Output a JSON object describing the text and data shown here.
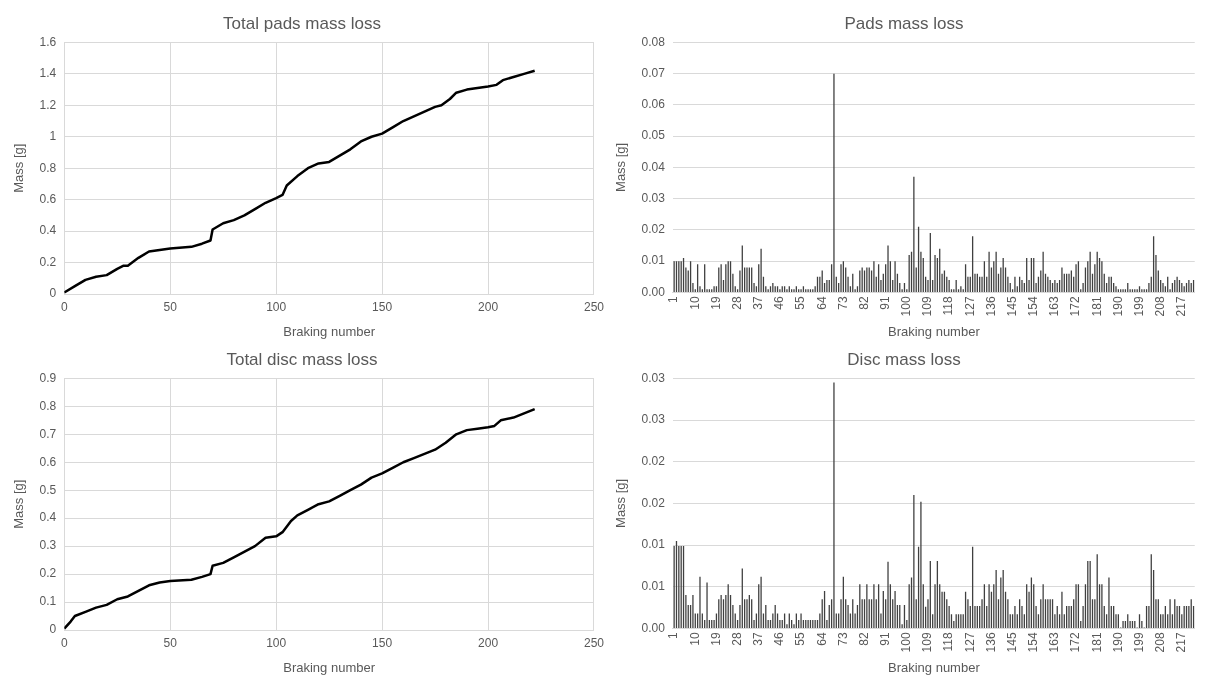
{
  "chart_data": [
    {
      "type": "line",
      "title": "Total pads mass loss",
      "xlabel": "Braking number",
      "ylabel": "Mass [g]",
      "color": "#000000",
      "grid": true,
      "x": [
        0,
        5,
        10,
        15,
        20,
        25,
        28,
        30,
        35,
        40,
        45,
        50,
        60,
        65,
        69,
        70,
        75,
        80,
        85,
        90,
        95,
        100,
        103,
        105,
        110,
        115,
        120,
        125,
        130,
        135,
        140,
        145,
        150,
        155,
        160,
        165,
        170,
        175,
        178,
        182,
        185,
        190,
        195,
        200,
        204,
        207,
        212,
        217,
        222
      ],
      "values": [
        0.01,
        0.05,
        0.09,
        0.11,
        0.12,
        0.16,
        0.18,
        0.18,
        0.23,
        0.27,
        0.28,
        0.29,
        0.3,
        0.32,
        0.34,
        0.41,
        0.45,
        0.47,
        0.5,
        0.54,
        0.58,
        0.61,
        0.63,
        0.69,
        0.75,
        0.8,
        0.83,
        0.84,
        0.88,
        0.92,
        0.97,
        1.0,
        1.02,
        1.06,
        1.1,
        1.13,
        1.16,
        1.19,
        1.2,
        1.24,
        1.28,
        1.3,
        1.31,
        1.32,
        1.33,
        1.36,
        1.38,
        1.4,
        1.42
      ],
      "xlim": [
        0,
        250
      ],
      "xticks": [
        0,
        50,
        100,
        150,
        200,
        250
      ],
      "ylim": [
        0,
        1.6
      ],
      "yticks": [
        0,
        0.2,
        0.4,
        0.6,
        0.8,
        1,
        1.2,
        1.4,
        1.6
      ]
    },
    {
      "type": "bar",
      "title": "Pads mass loss",
      "xlabel": "Braking number",
      "ylabel": "Mass [g]",
      "color": "#404040",
      "grid": "y",
      "categories": [
        "1",
        null,
        null,
        null,
        null,
        null,
        null,
        null,
        null,
        "10",
        null,
        null,
        null,
        null,
        null,
        null,
        null,
        null,
        "19",
        null,
        null,
        null,
        null,
        null,
        null,
        null,
        null,
        "28",
        null,
        null,
        null,
        null,
        null,
        null,
        null,
        null,
        "37",
        null,
        null,
        null,
        null,
        null,
        null,
        null,
        null,
        "46",
        null,
        null,
        null,
        null,
        null,
        null,
        null,
        null,
        "55",
        null,
        null,
        null,
        null,
        null,
        null,
        null,
        null,
        "64",
        null,
        null,
        null,
        null,
        null,
        null,
        null,
        null,
        "73",
        null,
        null,
        null,
        null,
        null,
        null,
        null,
        null,
        "82",
        null,
        null,
        null,
        null,
        null,
        null,
        null,
        null,
        "91",
        null,
        null,
        null,
        null,
        null,
        null,
        null,
        null,
        "100",
        null,
        null,
        null,
        null,
        null,
        null,
        null,
        null,
        "109",
        null,
        null,
        null,
        null,
        null,
        null,
        null,
        null,
        "118",
        null,
        null,
        null,
        null,
        null,
        null,
        null,
        null,
        "127",
        null,
        null,
        null,
        null,
        null,
        null,
        null,
        null,
        "136",
        null,
        null,
        null,
        null,
        null,
        null,
        null,
        null,
        "145",
        null,
        null,
        null,
        null,
        null,
        null,
        null,
        null,
        "154",
        null,
        null,
        null,
        null,
        null,
        null,
        null,
        null,
        "163",
        null,
        null,
        null,
        null,
        null,
        null,
        null,
        null,
        "172",
        null,
        null,
        null,
        null,
        null,
        null,
        null,
        null,
        "181",
        null,
        null,
        null,
        null,
        null,
        null,
        null,
        null,
        "190",
        null,
        null,
        null,
        null,
        null,
        null,
        null,
        null,
        "199",
        null,
        null,
        null,
        null,
        null,
        null,
        null,
        null,
        "208",
        null,
        null,
        null,
        null,
        null,
        null,
        null,
        null,
        "217",
        null,
        null,
        null,
        null,
        null
      ],
      "values": [
        0.01,
        0.01,
        0.01,
        0.01,
        0.011,
        0.008,
        0.007,
        0.01,
        0.003,
        0.001,
        0.009,
        0.002,
        0.001,
        0.009,
        0.001,
        0.001,
        0.001,
        0.002,
        0.002,
        0.008,
        0.009,
        0.004,
        0.009,
        0.01,
        0.01,
        0.006,
        0.002,
        0.001,
        0.007,
        0.015,
        0.008,
        0.008,
        0.008,
        0.008,
        0.003,
        0.002,
        0.009,
        0.014,
        0.005,
        0.002,
        0.001,
        0.002,
        0.003,
        0.002,
        0.002,
        0.001,
        0.002,
        0.002,
        0.001,
        0.002,
        0.001,
        0.001,
        0.002,
        0.001,
        0.001,
        0.002,
        0.001,
        0.001,
        0.001,
        0.001,
        0.002,
        0.005,
        0.005,
        0.007,
        0.003,
        0.004,
        0.004,
        0.009,
        0.07,
        0.005,
        0.003,
        0.009,
        0.01,
        0.008,
        0.005,
        0.002,
        0.006,
        0.001,
        0.002,
        0.007,
        0.008,
        0.007,
        0.008,
        0.008,
        0.007,
        0.01,
        0.005,
        0.009,
        0.004,
        0.006,
        0.009,
        0.015,
        0.01,
        0.004,
        0.01,
        0.006,
        0.003,
        0.001,
        0.003,
        0.001,
        0.012,
        0.013,
        0.037,
        0.008,
        0.021,
        0.013,
        0.011,
        0.005,
        0.004,
        0.019,
        0.004,
        0.012,
        0.011,
        0.014,
        0.006,
        0.007,
        0.005,
        0.004,
        0.001,
        0.001,
        0.004,
        0.001,
        0.002,
        0.001,
        0.009,
        0.005,
        0.005,
        0.018,
        0.006,
        0.006,
        0.005,
        0.005,
        0.01,
        0.005,
        0.013,
        0.008,
        0.01,
        0.013,
        0.006,
        0.008,
        0.011,
        0.008,
        0.005,
        0.003,
        0.001,
        0.005,
        0.002,
        0.005,
        0.004,
        0.003,
        0.011,
        0.004,
        0.011,
        0.011,
        0.003,
        0.005,
        0.007,
        0.013,
        0.006,
        0.005,
        0.004,
        0.003,
        0.004,
        0.003,
        0.004,
        0.008,
        0.006,
        0.006,
        0.006,
        0.007,
        0.005,
        0.009,
        0.01,
        0.001,
        0.003,
        0.008,
        0.01,
        0.013,
        0.006,
        0.009,
        0.013,
        0.011,
        0.01,
        0.006,
        0.003,
        0.005,
        0.005,
        0.003,
        0.002,
        0.001,
        0.001,
        0.001,
        0.001,
        0.003,
        0.001,
        0.001,
        0.001,
        0.001,
        0.002,
        0.001,
        0.001,
        0.001,
        0.003,
        0.005,
        0.018,
        0.012,
        0.007,
        0.004,
        0.003,
        0.002,
        0.005,
        0.001,
        0.003,
        0.004,
        0.005,
        0.004,
        0.003,
        0.002,
        0.003,
        0.004,
        0.003,
        0.004
      ],
      "ylim": [
        0,
        0.08
      ],
      "yticks": [
        {
          "value": 0,
          "label": "0.00"
        },
        {
          "value": 0.01,
          "label": "0.01"
        },
        {
          "value": 0.02,
          "label": "0.02"
        },
        {
          "value": 0.03,
          "label": "0.03"
        },
        {
          "value": 0.04,
          "label": "0.04"
        },
        {
          "value": 0.05,
          "label": "0.05"
        },
        {
          "value": 0.06,
          "label": "0.06"
        },
        {
          "value": 0.07,
          "label": "0.07"
        },
        {
          "value": 0.08,
          "label": "0.08"
        }
      ]
    },
    {
      "type": "line",
      "title": "Total disc mass loss",
      "xlabel": "Braking number",
      "ylabel": "Mass [g]",
      "color": "#000000",
      "grid": true,
      "x": [
        0,
        3,
        5,
        10,
        15,
        20,
        25,
        30,
        35,
        40,
        45,
        50,
        60,
        65,
        69,
        70,
        75,
        80,
        90,
        95,
        100,
        103,
        107,
        110,
        115,
        120,
        125,
        130,
        135,
        140,
        145,
        150,
        155,
        160,
        165,
        170,
        175,
        180,
        185,
        190,
        195,
        200,
        203,
        206,
        212,
        217,
        222
      ],
      "values": [
        0.005,
        0.03,
        0.05,
        0.065,
        0.08,
        0.09,
        0.11,
        0.12,
        0.14,
        0.16,
        0.17,
        0.175,
        0.18,
        0.19,
        0.2,
        0.23,
        0.24,
        0.26,
        0.3,
        0.33,
        0.335,
        0.35,
        0.39,
        0.41,
        0.43,
        0.45,
        0.46,
        0.48,
        0.5,
        0.52,
        0.545,
        0.56,
        0.58,
        0.6,
        0.615,
        0.63,
        0.645,
        0.67,
        0.7,
        0.715,
        0.72,
        0.725,
        0.73,
        0.75,
        0.76,
        0.775,
        0.79
      ],
      "xlim": [
        0,
        250
      ],
      "xticks": [
        0,
        50,
        100,
        150,
        200,
        250
      ],
      "ylim": [
        0,
        0.9
      ],
      "yticks": [
        0,
        0.1,
        0.2,
        0.3,
        0.4,
        0.5,
        0.6,
        0.7,
        0.8,
        0.9
      ]
    },
    {
      "type": "bar",
      "title": "Disc mass loss",
      "xlabel": "Braking number",
      "ylabel": "Mass [g]",
      "color": "#404040",
      "grid": "y",
      "categories": [
        "1",
        null,
        null,
        null,
        null,
        null,
        null,
        null,
        null,
        "10",
        null,
        null,
        null,
        null,
        null,
        null,
        null,
        null,
        "19",
        null,
        null,
        null,
        null,
        null,
        null,
        null,
        null,
        "28",
        null,
        null,
        null,
        null,
        null,
        null,
        null,
        null,
        "37",
        null,
        null,
        null,
        null,
        null,
        null,
        null,
        null,
        "46",
        null,
        null,
        null,
        null,
        null,
        null,
        null,
        null,
        "55",
        null,
        null,
        null,
        null,
        null,
        null,
        null,
        null,
        "64",
        null,
        null,
        null,
        null,
        null,
        null,
        null,
        null,
        "73",
        null,
        null,
        null,
        null,
        null,
        null,
        null,
        null,
        "82",
        null,
        null,
        null,
        null,
        null,
        null,
        null,
        null,
        "91",
        null,
        null,
        null,
        null,
        null,
        null,
        null,
        null,
        "100",
        null,
        null,
        null,
        null,
        null,
        null,
        null,
        null,
        "109",
        null,
        null,
        null,
        null,
        null,
        null,
        null,
        null,
        "118",
        null,
        null,
        null,
        null,
        null,
        null,
        null,
        null,
        "127",
        null,
        null,
        null,
        null,
        null,
        null,
        null,
        null,
        "136",
        null,
        null,
        null,
        null,
        null,
        null,
        null,
        null,
        "145",
        null,
        null,
        null,
        null,
        null,
        null,
        null,
        null,
        "154",
        null,
        null,
        null,
        null,
        null,
        null,
        null,
        null,
        "163",
        null,
        null,
        null,
        null,
        null,
        null,
        null,
        null,
        "172",
        null,
        null,
        null,
        null,
        null,
        null,
        null,
        null,
        "181",
        null,
        null,
        null,
        null,
        null,
        null,
        null,
        null,
        "190",
        null,
        null,
        null,
        null,
        null,
        null,
        null,
        null,
        "199",
        null,
        null,
        null,
        null,
        null,
        null,
        null,
        null,
        "208",
        null,
        null,
        null,
        null,
        null,
        null,
        null,
        null,
        "217",
        null,
        null,
        null,
        null,
        null
      ],
      "values": [
        0.0099,
        0.0105,
        0.0099,
        0.0099,
        0.0099,
        0.004,
        0.0028,
        0.0028,
        0.004,
        0.0018,
        0.0018,
        0.0062,
        0.0018,
        0.001,
        0.0055,
        0.001,
        0.001,
        0.001,
        0.0018,
        0.0035,
        0.004,
        0.0035,
        0.004,
        0.0053,
        0.004,
        0.0028,
        0.0018,
        0.001,
        0.0028,
        0.0072,
        0.0035,
        0.0035,
        0.004,
        0.0035,
        0.001,
        0.0018,
        0.0053,
        0.0062,
        0.0018,
        0.0028,
        0.001,
        0.001,
        0.0018,
        0.0028,
        0.0018,
        0.001,
        0.001,
        0.0018,
        0.0005,
        0.0018,
        0.001,
        0.0005,
        0.0018,
        0.001,
        0.0018,
        0.001,
        0.001,
        0.001,
        0.001,
        0.001,
        0.001,
        0.001,
        0.0018,
        0.0035,
        0.0045,
        0.001,
        0.0028,
        0.0035,
        0.0295,
        0.0018,
        0.0018,
        0.0035,
        0.0062,
        0.0035,
        0.0028,
        0.0018,
        0.0035,
        0.0018,
        0.0028,
        0.0053,
        0.0035,
        0.0035,
        0.0053,
        0.0035,
        0.0035,
        0.0053,
        0.0035,
        0.0053,
        0.0018,
        0.0045,
        0.0035,
        0.008,
        0.0053,
        0.0035,
        0.0045,
        0.0028,
        0.0028,
        0.0005,
        0.0028,
        0.001,
        0.0053,
        0.0061,
        0.016,
        0.0035,
        0.0098,
        0.0152,
        0.0053,
        0.0026,
        0.0035,
        0.0081,
        0.0017,
        0.0053,
        0.0081,
        0.0053,
        0.0044,
        0.0044,
        0.0035,
        0.0027,
        0.0017,
        0.0009,
        0.0017,
        0.0017,
        0.0017,
        0.0017,
        0.0044,
        0.0035,
        0.0027,
        0.0098,
        0.0027,
        0.0027,
        0.0027,
        0.0035,
        0.0053,
        0.0027,
        0.0053,
        0.0044,
        0.0053,
        0.007,
        0.0035,
        0.0061,
        0.007,
        0.0044,
        0.0035,
        0.0017,
        0.0017,
        0.0027,
        0.0017,
        0.0035,
        0.0027,
        0.0017,
        0.0053,
        0.0044,
        0.0061,
        0.0053,
        0.0027,
        0.0017,
        0.0035,
        0.0053,
        0.0035,
        0.0035,
        0.0035,
        0.0035,
        0.0017,
        0.0027,
        0.0017,
        0.0044,
        0.0017,
        0.0027,
        0.0027,
        0.0027,
        0.0035,
        0.0053,
        0.0053,
        0.0009,
        0.0027,
        0.0053,
        0.0081,
        0.0081,
        0.0035,
        0.0035,
        0.0089,
        0.0053,
        0.0053,
        0.0027,
        0.0017,
        0.0061,
        0.0027,
        0.0027,
        0.0017,
        0.0017,
        0.0001,
        0.0009,
        0.0009,
        0.0017,
        0.0009,
        0.0009,
        0.0009,
        0.0001,
        0.0017,
        0.0009,
        0.0001,
        0.0027,
        0.0027,
        0.0089,
        0.007,
        0.0035,
        0.0035,
        0.0017,
        0.0017,
        0.0027,
        0.0017,
        0.0035,
        0.0017,
        0.0035,
        0.0027,
        0.0027,
        0.0017,
        0.0027,
        0.0027,
        0.0027,
        0.0035,
        0.0027
      ],
      "ylim": [
        0,
        0.03
      ],
      "yticks": [
        {
          "value": 0,
          "label": "0.00"
        },
        {
          "value": 0.005,
          "label": "0.01"
        },
        {
          "value": 0.01,
          "label": "0.01"
        },
        {
          "value": 0.015,
          "label": "0.02"
        },
        {
          "value": 0.02,
          "label": "0.02"
        },
        {
          "value": 0.025,
          "label": "0.03"
        },
        {
          "value": 0.03,
          "label": "0.03"
        }
      ]
    }
  ]
}
